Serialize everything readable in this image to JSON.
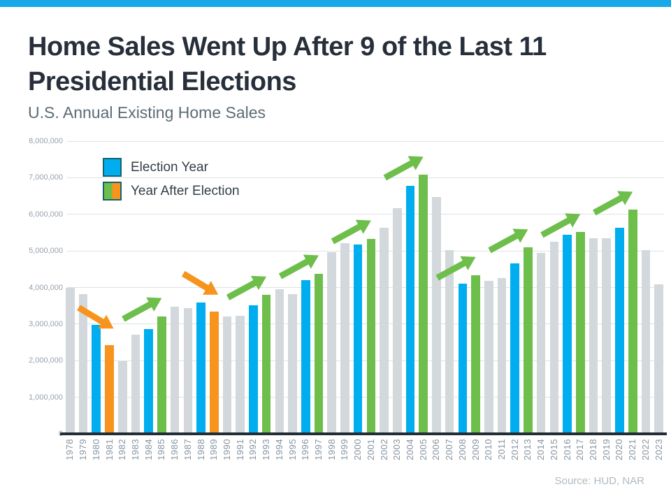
{
  "header": {
    "title_line1": "Home Sales Went Up After 9 of the Last 11",
    "title_line2": "Presidential Elections",
    "subtitle": "U.S. Annual Existing Home Sales"
  },
  "footer": {
    "source": "Source: HUD, NAR"
  },
  "colors": {
    "accent_strip": "#19A9E8",
    "bar_election": "#00AEEF",
    "bar_after_up": "#6DBE4B",
    "bar_after_down": "#F7941D",
    "bar_other": "#D2D8DB",
    "arrow_up": "#6DBE4B",
    "arrow_down": "#F7941D",
    "gridline": "#DEE2E5",
    "axis_line": "#232D36",
    "legend_border": "#15626C",
    "title_text": "#272F3A",
    "subtitle_text": "#5C6B75",
    "tick_text": "#97A1AC",
    "xlabel_text": "#8593A2",
    "legend_text": "#323E48",
    "source_text": "#B0BAC1"
  },
  "chart_data": {
    "type": "bar",
    "title": "Home Sales Went Up After 9 of the Last 11 Presidential Elections",
    "subtitle": "U.S. Annual Existing Home Sales",
    "source": "Source: HUD, NAR",
    "grid": true,
    "legend_position": "top-left-inside",
    "legend_entries": [
      "Election Year",
      "Year After Election"
    ],
    "ylim": [
      0,
      8000000
    ],
    "ytick_interval": 1000000,
    "ytick_labels": [
      "0",
      "1,000,000",
      "2,000,000",
      "3,000,000",
      "4,000,000",
      "5,000,000",
      "6,000,000",
      "7,000,000",
      "8,000,000"
    ],
    "categories": [
      1978,
      1979,
      1980,
      1981,
      1982,
      1983,
      1984,
      1985,
      1986,
      1987,
      1988,
      1989,
      1990,
      1991,
      1992,
      1993,
      1994,
      1995,
      1996,
      1997,
      1998,
      1999,
      2000,
      2001,
      2002,
      2003,
      2004,
      2005,
      2006,
      2007,
      2008,
      2009,
      2010,
      2011,
      2012,
      2013,
      2014,
      2015,
      2016,
      2017,
      2018,
      2019,
      2020,
      2021,
      2022,
      2023
    ],
    "values": [
      3986000,
      3827000,
      2973000,
      2419000,
      1990000,
      2719000,
      2868000,
      3214000,
      3474000,
      3436000,
      3594000,
      3346000,
      3211000,
      3220000,
      3520000,
      3802000,
      3946000,
      3812000,
      4196000,
      4382000,
      4970000,
      5205000,
      5174000,
      5335000,
      5631000,
      6175000,
      6778000,
      7076000,
      6478000,
      5030000,
      4110000,
      4340000,
      4190000,
      4260000,
      4660000,
      5090000,
      4940000,
      5250000,
      5450000,
      5510000,
      5340000,
      5340000,
      5640000,
      6120000,
      5030000,
      4090000
    ],
    "roles": [
      "other",
      "other",
      "election",
      "after-down",
      "other",
      "other",
      "election",
      "after-up",
      "other",
      "other",
      "election",
      "after-down",
      "other",
      "other",
      "election",
      "after-up",
      "other",
      "other",
      "election",
      "after-up",
      "other",
      "other",
      "election",
      "after-up",
      "other",
      "other",
      "election",
      "after-up",
      "other",
      "other",
      "election",
      "after-up",
      "other",
      "other",
      "election",
      "after-up",
      "other",
      "other",
      "election",
      "after-up",
      "other",
      "other",
      "election",
      "after-up",
      "other",
      "other"
    ],
    "arrows": [
      {
        "from": 1980,
        "to": 1981,
        "direction": "down"
      },
      {
        "from": 1984,
        "to": 1985,
        "direction": "up"
      },
      {
        "from": 1988,
        "to": 1989,
        "direction": "down"
      },
      {
        "from": 1992,
        "to": 1993,
        "direction": "up"
      },
      {
        "from": 1996,
        "to": 1997,
        "direction": "up"
      },
      {
        "from": 2000,
        "to": 2001,
        "direction": "up"
      },
      {
        "from": 2004,
        "to": 2005,
        "direction": "up"
      },
      {
        "from": 2008,
        "to": 2009,
        "direction": "up"
      },
      {
        "from": 2012,
        "to": 2013,
        "direction": "up"
      },
      {
        "from": 2016,
        "to": 2017,
        "direction": "up"
      },
      {
        "from": 2020,
        "to": 2021,
        "direction": "up"
      }
    ]
  }
}
